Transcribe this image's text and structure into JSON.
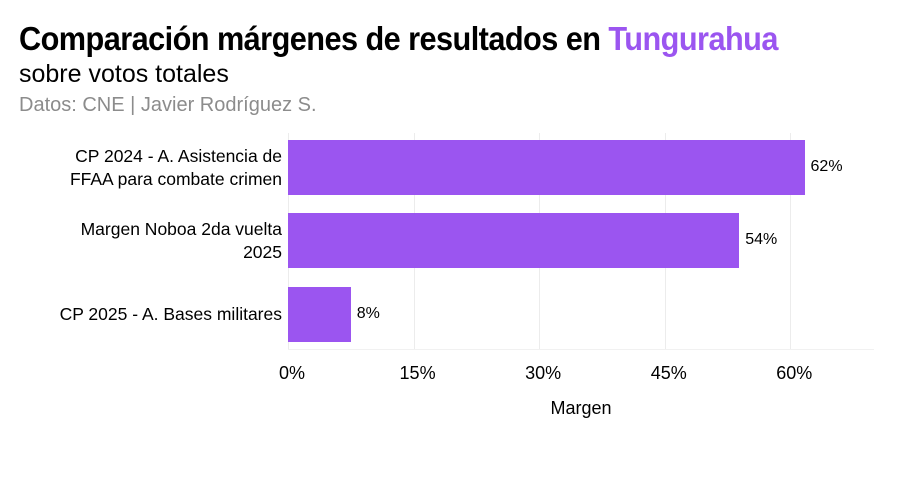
{
  "chart_data": {
    "type": "bar",
    "orientation": "horizontal",
    "title": "Comparación márgenes de resultados en Tungurahua",
    "title_parts": {
      "main": "Comparación márgenes de resultados en ",
      "highlight": "Tungurahua"
    },
    "subtitle": "sobre votos totales",
    "caption": "Datos: CNE | Javier Rodríguez S.",
    "categories": [
      "CP 2024 - A. Asistencia de FFAA para combate crimen",
      "Margen Noboa 2da vuelta 2025",
      "CP 2025 - A. Bases militares"
    ],
    "category_lines": [
      [
        "CP 2024 - A. Asistencia de",
        "FFAA para combate crimen"
      ],
      [
        "Margen Noboa 2da vuelta",
        "2025"
      ],
      [
        "CP 2025 - A. Bases militares"
      ]
    ],
    "values": [
      61.7,
      53.9,
      7.5
    ],
    "value_labels": [
      "62%",
      "54%",
      "8%"
    ],
    "xlabel": "Margen",
    "ylabel": "",
    "xlim": [
      0,
      70
    ],
    "xticks": [
      0,
      15,
      30,
      45,
      60
    ],
    "xtick_labels": [
      "0%",
      "15%",
      "30%",
      "45%",
      "60%"
    ],
    "grid": true,
    "legend": null,
    "colors": {
      "bar": "#9b55f0",
      "highlight": "#9b55f0",
      "caption": "#8c8c8c"
    }
  }
}
